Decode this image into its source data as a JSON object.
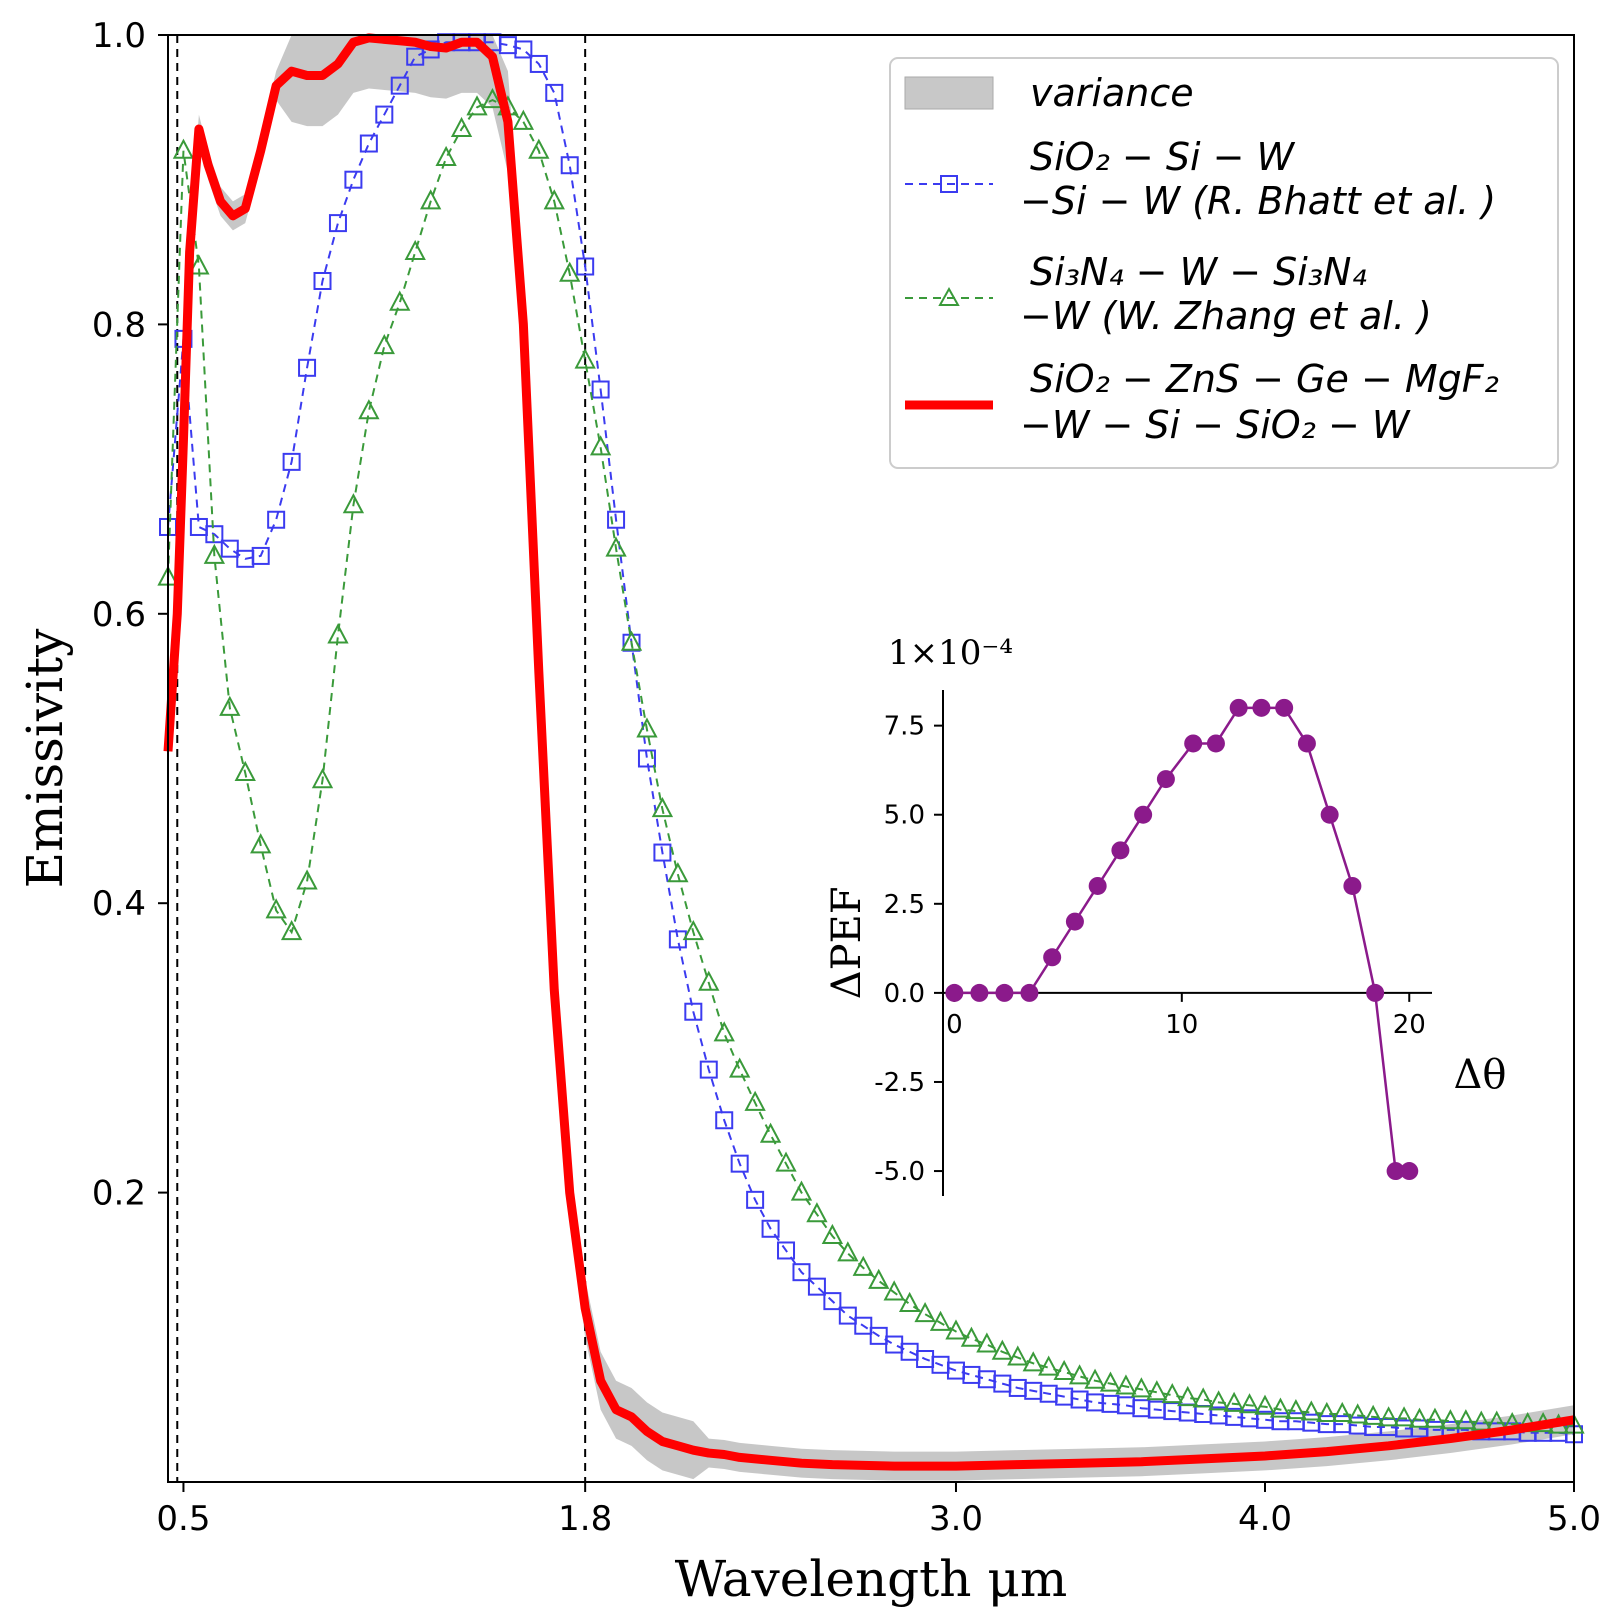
{
  "chart_data": [
    {
      "type": "line",
      "title": "",
      "xlabel": "Wavelength μm",
      "ylabel": "Emissivity",
      "xlim": [
        0.45,
        5.0
      ],
      "ylim": [
        0.0,
        1.0
      ],
      "xticks": [
        0.5,
        1.8,
        3.0,
        4.0,
        5.0
      ],
      "xtick_labels": [
        "0.5",
        "1.8",
        "3.0",
        "4.0",
        "5.0"
      ],
      "yticks": [
        0.2,
        0.4,
        0.6,
        0.8,
        1.0
      ],
      "ytick_labels": [
        "0.2",
        "0.4",
        "0.6",
        "0.8",
        "1.0"
      ],
      "vlines": [
        0.48,
        1.8
      ],
      "legend_position": "top-right",
      "legend": [
        {
          "key": "variance",
          "lines": [
            "variance"
          ]
        },
        {
          "key": "bhatt",
          "lines": [
            "SiO₂ − Si − W",
            "−Si − W (R. Bhatt et al. )"
          ]
        },
        {
          "key": "zhang",
          "lines": [
            "Si₃N₄ − W − Si₃N₄",
            "−W (W. Zhang et al. )"
          ]
        },
        {
          "key": "ours",
          "lines": [
            "SiO₂ − ZnS − Ge − MgF₂",
            "−W − Si − SiO₂ − W"
          ]
        }
      ],
      "series": [
        {
          "name": "SiO2 − Si − W − Si − W (R. Bhatt et al.)",
          "style": "dashed-square",
          "color": "#3b3bf0",
          "x": [
            0.45,
            0.5,
            0.55,
            0.6,
            0.65,
            0.7,
            0.75,
            0.8,
            0.85,
            0.9,
            0.95,
            1.0,
            1.05,
            1.1,
            1.15,
            1.2,
            1.25,
            1.3,
            1.35,
            1.4,
            1.45,
            1.5,
            1.55,
            1.6,
            1.65,
            1.7,
            1.75,
            1.8,
            1.85,
            1.9,
            1.95,
            2.0,
            2.05,
            2.1,
            2.15,
            2.2,
            2.25,
            2.3,
            2.35,
            2.4,
            2.45,
            2.5,
            2.55,
            2.6,
            2.65,
            2.7,
            2.75,
            2.8,
            2.85,
            2.9,
            2.95,
            3.0,
            3.05,
            3.1,
            3.15,
            3.2,
            3.25,
            3.3,
            3.35,
            3.4,
            3.45,
            3.5,
            3.55,
            3.6,
            3.65,
            3.7,
            3.75,
            3.8,
            3.85,
            3.9,
            3.95,
            4.0,
            4.05,
            4.1,
            4.15,
            4.2,
            4.25,
            4.3,
            4.35,
            4.4,
            4.45,
            4.5,
            4.55,
            4.6,
            4.65,
            4.7,
            4.75,
            4.8,
            4.85,
            4.9,
            4.95,
            5.0
          ],
          "y": [
            0.66,
            0.79,
            0.66,
            0.655,
            0.645,
            0.638,
            0.64,
            0.665,
            0.705,
            0.77,
            0.83,
            0.87,
            0.9,
            0.925,
            0.945,
            0.965,
            0.985,
            0.99,
            0.995,
            0.995,
            0.995,
            0.995,
            0.993,
            0.99,
            0.98,
            0.96,
            0.91,
            0.84,
            0.755,
            0.665,
            0.58,
            0.5,
            0.435,
            0.375,
            0.325,
            0.285,
            0.25,
            0.22,
            0.195,
            0.175,
            0.16,
            0.145,
            0.135,
            0.125,
            0.115,
            0.108,
            0.101,
            0.095,
            0.09,
            0.085,
            0.081,
            0.077,
            0.074,
            0.071,
            0.068,
            0.065,
            0.063,
            0.061,
            0.059,
            0.057,
            0.055,
            0.054,
            0.053,
            0.051,
            0.05,
            0.049,
            0.048,
            0.047,
            0.046,
            0.045,
            0.044,
            0.043,
            0.042,
            0.042,
            0.041,
            0.04,
            0.04,
            0.039,
            0.038,
            0.038,
            0.037,
            0.037,
            0.036,
            0.036,
            0.036,
            0.035,
            0.035,
            0.035,
            0.034,
            0.034,
            0.034,
            0.033
          ]
        },
        {
          "name": "Si3N4 − W − Si3N4 − W (W. Zhang et al.)",
          "style": "dashed-triangle",
          "color": "#3a9a3a",
          "x": [
            0.45,
            0.5,
            0.55,
            0.6,
            0.65,
            0.7,
            0.75,
            0.8,
            0.85,
            0.9,
            0.95,
            1.0,
            1.05,
            1.1,
            1.15,
            1.2,
            1.25,
            1.3,
            1.35,
            1.4,
            1.45,
            1.5,
            1.55,
            1.6,
            1.65,
            1.7,
            1.75,
            1.8,
            1.85,
            1.9,
            1.95,
            2.0,
            2.05,
            2.1,
            2.15,
            2.2,
            2.25,
            2.3,
            2.35,
            2.4,
            2.45,
            2.5,
            2.55,
            2.6,
            2.65,
            2.7,
            2.75,
            2.8,
            2.85,
            2.9,
            2.95,
            3.0,
            3.05,
            3.1,
            3.15,
            3.2,
            3.25,
            3.3,
            3.35,
            3.4,
            3.45,
            3.5,
            3.55,
            3.6,
            3.65,
            3.7,
            3.75,
            3.8,
            3.85,
            3.9,
            3.95,
            4.0,
            4.05,
            4.1,
            4.15,
            4.2,
            4.25,
            4.3,
            4.35,
            4.4,
            4.45,
            4.5,
            4.55,
            4.6,
            4.65,
            4.7,
            4.75,
            4.8,
            4.85,
            4.9,
            4.95,
            5.0
          ],
          "y": [
            0.625,
            0.92,
            0.84,
            0.64,
            0.535,
            0.49,
            0.44,
            0.395,
            0.38,
            0.415,
            0.485,
            0.585,
            0.675,
            0.74,
            0.785,
            0.815,
            0.85,
            0.885,
            0.915,
            0.935,
            0.95,
            0.955,
            0.95,
            0.94,
            0.92,
            0.885,
            0.835,
            0.775,
            0.715,
            0.645,
            0.58,
            0.52,
            0.465,
            0.42,
            0.38,
            0.345,
            0.31,
            0.285,
            0.262,
            0.24,
            0.22,
            0.2,
            0.185,
            0.17,
            0.158,
            0.148,
            0.139,
            0.131,
            0.123,
            0.116,
            0.11,
            0.104,
            0.099,
            0.095,
            0.09,
            0.086,
            0.082,
            0.079,
            0.076,
            0.073,
            0.07,
            0.068,
            0.066,
            0.064,
            0.062,
            0.06,
            0.058,
            0.057,
            0.055,
            0.054,
            0.053,
            0.052,
            0.05,
            0.049,
            0.048,
            0.047,
            0.047,
            0.046,
            0.045,
            0.044,
            0.044,
            0.043,
            0.043,
            0.042,
            0.042,
            0.041,
            0.041,
            0.04,
            0.04,
            0.04,
            0.039,
            0.039
          ]
        },
        {
          "name": "SiO2 − ZnS − Ge − MgF2 − W − Si − SiO2 − W",
          "style": "solid-thick",
          "color": "#ff0000",
          "x": [
            0.45,
            0.48,
            0.5,
            0.52,
            0.55,
            0.58,
            0.62,
            0.66,
            0.7,
            0.75,
            0.8,
            0.85,
            0.9,
            0.95,
            1.0,
            1.05,
            1.1,
            1.15,
            1.2,
            1.25,
            1.3,
            1.35,
            1.4,
            1.45,
            1.5,
            1.55,
            1.6,
            1.65,
            1.7,
            1.75,
            1.8,
            1.85,
            1.9,
            1.95,
            2.0,
            2.05,
            2.1,
            2.15,
            2.2,
            2.25,
            2.3,
            2.4,
            2.5,
            2.6,
            2.8,
            3.0,
            3.2,
            3.4,
            3.6,
            3.8,
            4.0,
            4.2,
            4.4,
            4.6,
            4.8,
            5.0
          ],
          "y": [
            0.505,
            0.6,
            0.72,
            0.85,
            0.935,
            0.91,
            0.885,
            0.875,
            0.88,
            0.92,
            0.965,
            0.975,
            0.972,
            0.972,
            0.98,
            0.995,
            0.998,
            0.997,
            0.996,
            0.995,
            0.992,
            0.991,
            0.995,
            0.995,
            0.985,
            0.94,
            0.8,
            0.56,
            0.34,
            0.2,
            0.12,
            0.07,
            0.05,
            0.045,
            0.035,
            0.028,
            0.025,
            0.022,
            0.02,
            0.019,
            0.017,
            0.015,
            0.013,
            0.012,
            0.011,
            0.011,
            0.012,
            0.013,
            0.014,
            0.016,
            0.018,
            0.021,
            0.025,
            0.03,
            0.036,
            0.043
          ]
        }
      ]
    },
    {
      "type": "line",
      "title": "",
      "xlabel": "Δθ",
      "ylabel": "ΔPEF",
      "scale_label": "1×10⁻⁴",
      "xlim": [
        -0.5,
        21
      ],
      "ylim": [
        -5.7,
        8.5
      ],
      "xticks": [
        0,
        10,
        20
      ],
      "xtick_labels": [
        "0",
        "10",
        "20"
      ],
      "yticks": [
        7.5,
        5.0,
        2.5,
        0.0,
        -2.5,
        -5.0
      ],
      "ytick_labels": [
        "7.5",
        "5.0",
        "2.5",
        "0.0",
        "-2.5",
        "-5.0"
      ],
      "series": [
        {
          "name": "ΔPEF",
          "color": "#8b1a8b",
          "x": [
            0,
            1,
            2,
            3,
            4,
            5,
            6,
            7,
            8,
            9,
            10,
            11,
            12,
            13,
            14,
            15,
            16,
            17,
            18,
            19,
            20
          ],
          "y": [
            0,
            0,
            0,
            0,
            1,
            2,
            3,
            4,
            5,
            6,
            7,
            7,
            8,
            8,
            8,
            7,
            5,
            3,
            0,
            -5,
            -5
          ],
          "x_actual": [
            0,
            1.1,
            2.2,
            3.3,
            4.3,
            5.3,
            6.3,
            7.3,
            8.3,
            9.3,
            10.5,
            11.5,
            12.5,
            13.5,
            14.5,
            15.5,
            16.5,
            17.5,
            18.5,
            19.4,
            20
          ]
        }
      ]
    }
  ]
}
